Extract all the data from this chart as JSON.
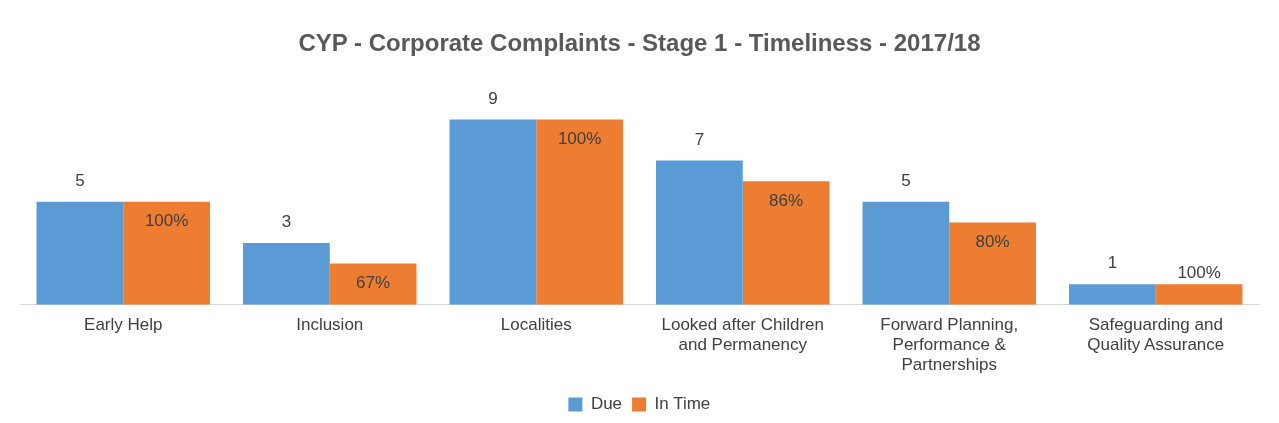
{
  "chart_data": {
    "type": "bar",
    "title": "CYP - Corporate Complaints - Stage 1 - Timeliness - 2017/18",
    "categories": [
      "Early Help",
      "Inclusion",
      "Localities",
      "Looked after Children and Permanency",
      "Forward Planning, Performance & Partnerships",
      "Safeguarding and Quality Assurance"
    ],
    "series": [
      {
        "name": "Due",
        "color": "#5b9bd5",
        "values": [
          5,
          3,
          9,
          7,
          5,
          1
        ],
        "value_labels": [
          "5",
          "3",
          "9",
          "7",
          "5",
          "1"
        ]
      },
      {
        "name": "In Time",
        "color": "#ed7d31",
        "values": [
          5,
          2,
          9,
          6,
          4,
          1
        ]
      }
    ],
    "annotations": [
      {
        "text": "100%",
        "x": "Early Help",
        "y": 5
      },
      {
        "text": "67%",
        "x": "Inclusion",
        "y": 2
      },
      {
        "text": "100%",
        "x": "Localities",
        "y": 9
      },
      {
        "text": "86%",
        "x": "Looked after Children and Permanency",
        "y": 6
      },
      {
        "text": "80%",
        "x": "Forward Planning, Performance & Partnerships",
        "y": 4
      },
      {
        "text": "100%",
        "x": "Safeguarding and Quality Assurance",
        "y": 1
      }
    ],
    "tick_labels": "x",
    "grid": false,
    "legend": "bottom"
  }
}
